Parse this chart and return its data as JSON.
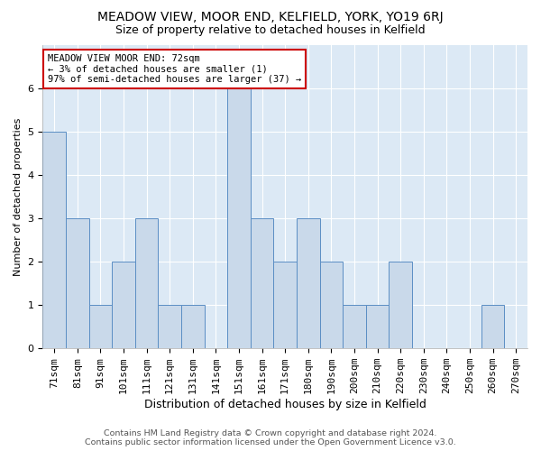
{
  "title1": "MEADOW VIEW, MOOR END, KELFIELD, YORK, YO19 6RJ",
  "title2": "Size of property relative to detached houses in Kelfield",
  "xlabel": "Distribution of detached houses by size in Kelfield",
  "ylabel": "Number of detached properties",
  "categories": [
    "71sqm",
    "81sqm",
    "91sqm",
    "101sqm",
    "111sqm",
    "121sqm",
    "131sqm",
    "141sqm",
    "151sqm",
    "161sqm",
    "171sqm",
    "180sqm",
    "190sqm",
    "200sqm",
    "210sqm",
    "220sqm",
    "230sqm",
    "240sqm",
    "250sqm",
    "260sqm",
    "270sqm"
  ],
  "values": [
    5,
    3,
    1,
    2,
    3,
    1,
    1,
    0,
    6,
    3,
    2,
    3,
    2,
    1,
    1,
    2,
    0,
    0,
    0,
    1,
    0
  ],
  "bar_color": "#c9d9ea",
  "bar_edge_color": "#5b8ec4",
  "highlight_edge_color": "#cc0000",
  "annotation_box_text": "MEADOW VIEW MOOR END: 72sqm\n← 3% of detached houses are smaller (1)\n97% of semi-detached houses are larger (37) →",
  "annotation_box_edge_color": "#cc0000",
  "ylim": [
    0,
    7
  ],
  "yticks": [
    0,
    1,
    2,
    3,
    4,
    5,
    6,
    7
  ],
  "footer_line1": "Contains HM Land Registry data © Crown copyright and database right 2024.",
  "footer_line2": "Contains public sector information licensed under the Open Government Licence v3.0.",
  "background_color": "#dce9f5",
  "grid_color": "#ffffff",
  "title1_fontsize": 10,
  "title2_fontsize": 9,
  "xlabel_fontsize": 9,
  "ylabel_fontsize": 8,
  "annotation_fontsize": 7.5,
  "footer_fontsize": 6.8,
  "tick_fontsize": 8
}
